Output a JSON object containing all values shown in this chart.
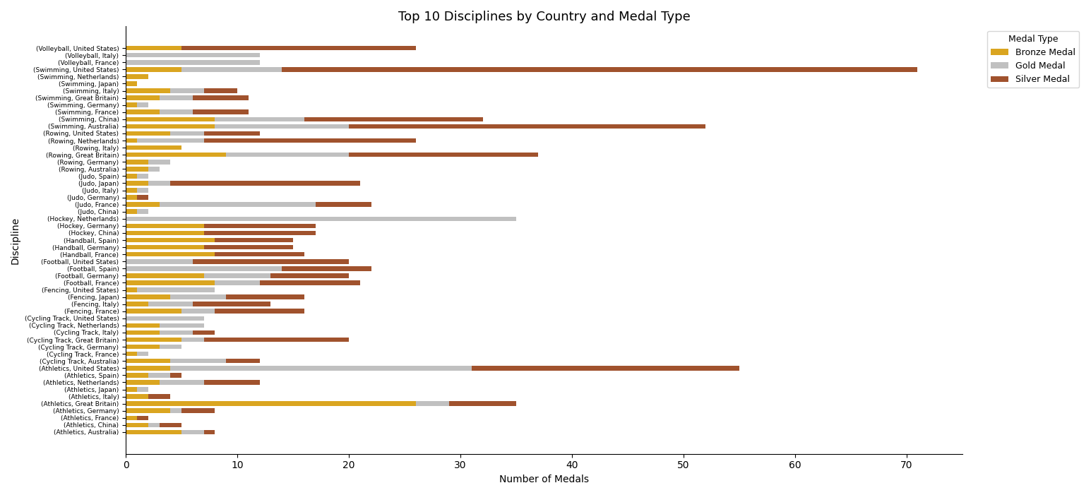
{
  "title": "Top 10 Disciplines by Country and Medal Type",
  "xlabel": "Number of Medals",
  "ylabel": "Discipline",
  "categories": [
    "(Athletics, Australia)",
    "(Athletics, China)",
    "(Athletics, France)",
    "(Athletics, Germany)",
    "(Athletics, Great Britain)",
    "(Athletics, Italy)",
    "(Athletics, Japan)",
    "(Athletics, Netherlands)",
    "(Athletics, Spain)",
    "(Athletics, United States)",
    "(Cycling Track, Australia)",
    "(Cycling Track, France)",
    "(Cycling Track, Germany)",
    "(Cycling Track, Great Britain)",
    "(Cycling Track, Italy)",
    "(Cycling Track, Netherlands)",
    "(Cycling Track, United States)",
    "(Fencing, France)",
    "(Fencing, Italy)",
    "(Fencing, Japan)",
    "(Fencing, United States)",
    "(Football, France)",
    "(Football, Germany)",
    "(Football, Spain)",
    "(Football, United States)",
    "(Handball, France)",
    "(Handball, Germany)",
    "(Handball, Spain)",
    "(Hockey, China)",
    "(Hockey, Germany)",
    "(Hockey, Netherlands)",
    "(Judo, China)",
    "(Judo, France)",
    "(Judo, Germany)",
    "(Judo, Italy)",
    "(Judo, Japan)",
    "(Judo, Spain)",
    "(Rowing, Australia)",
    "(Rowing, Germany)",
    "(Rowing, Great Britain)",
    "(Rowing, Italy)",
    "(Rowing, Netherlands)",
    "(Rowing, United States)",
    "(Swimming, Australia)",
    "(Swimming, China)",
    "(Swimming, France)",
    "(Swimming, Germany)",
    "(Swimming, Great Britain)",
    "(Swimming, Italy)",
    "(Swimming, Japan)",
    "(Swimming, Netherlands)",
    "(Swimming, United States)",
    "(Volleyball, France)",
    "(Volleyball, Italy)",
    "(Volleyball, United States)"
  ],
  "bronze": [
    5,
    2,
    1,
    4,
    26,
    2,
    1,
    3,
    2,
    4,
    4,
    1,
    3,
    5,
    3,
    3,
    0,
    5,
    2,
    4,
    1,
    8,
    7,
    0,
    0,
    8,
    7,
    8,
    7,
    7,
    0,
    1,
    3,
    1,
    1,
    2,
    1,
    2,
    2,
    9,
    5,
    1,
    4,
    8,
    8,
    3,
    1,
    3,
    4,
    1,
    2,
    5,
    0,
    0,
    5
  ],
  "gold": [
    2,
    1,
    0,
    1,
    3,
    0,
    1,
    4,
    2,
    27,
    5,
    1,
    2,
    2,
    3,
    4,
    7,
    3,
    4,
    5,
    7,
    4,
    6,
    14,
    6,
    0,
    0,
    0,
    0,
    0,
    35,
    1,
    14,
    0,
    1,
    2,
    1,
    1,
    2,
    11,
    0,
    6,
    3,
    12,
    8,
    3,
    1,
    3,
    3,
    0,
    0,
    9,
    12,
    12,
    0
  ],
  "silver": [
    1,
    2,
    1,
    3,
    6,
    2,
    0,
    5,
    1,
    24,
    3,
    0,
    0,
    13,
    2,
    0,
    0,
    8,
    7,
    7,
    0,
    9,
    7,
    8,
    14,
    8,
    8,
    7,
    10,
    10,
    0,
    0,
    5,
    1,
    0,
    17,
    0,
    0,
    0,
    17,
    0,
    19,
    5,
    32,
    16,
    5,
    0,
    5,
    3,
    0,
    0,
    57,
    0,
    0,
    21
  ],
  "bronze_color": "#DAA520",
  "gold_color": "#C0C0C0",
  "silver_color": "#A0522D",
  "figsize": [
    15.45,
    7.01
  ],
  "dpi": 100
}
